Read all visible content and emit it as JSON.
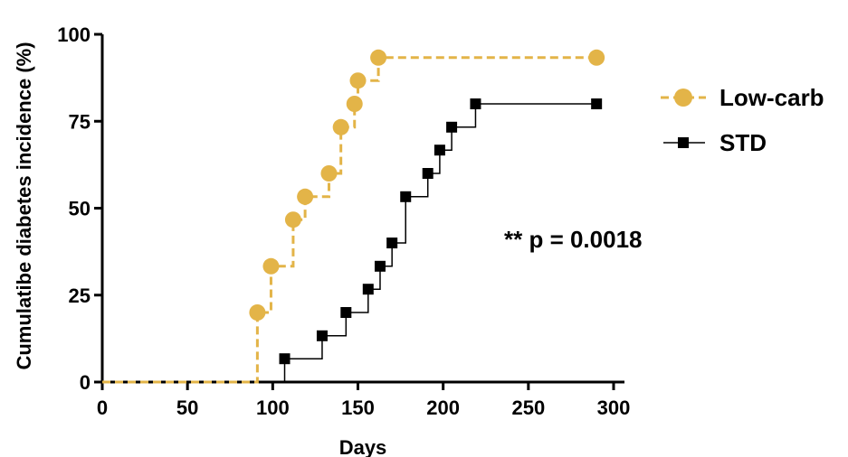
{
  "chart_data": {
    "type": "line",
    "title": "",
    "xlabel": "Days",
    "ylabel": "Cumulatibe diabetes incidence (%)",
    "xlim": [
      0,
      300
    ],
    "ylim": [
      0,
      100
    ],
    "xticks": [
      0,
      50,
      100,
      150,
      200,
      250,
      300
    ],
    "yticks": [
      0,
      25,
      50,
      75,
      100
    ],
    "grid": false,
    "legend_position": "right",
    "annotation": "** p = 0.0018",
    "colors": {
      "low_carb": "#E3B448",
      "std": "#000000"
    },
    "series": [
      {
        "name": "Low-carb",
        "style": "dashed step, circle markers",
        "points": [
          [
            0,
            0
          ],
          [
            91,
            20
          ],
          [
            99,
            33.3
          ],
          [
            112,
            46.7
          ],
          [
            119,
            53.3
          ],
          [
            133,
            60
          ],
          [
            140,
            73.3
          ],
          [
            148,
            80
          ],
          [
            150,
            86.7
          ],
          [
            162,
            93.3
          ],
          [
            290,
            93.3
          ]
        ]
      },
      {
        "name": "STD",
        "style": "solid step, square markers",
        "points": [
          [
            107,
            6.7
          ],
          [
            129,
            13.3
          ],
          [
            143,
            20
          ],
          [
            156,
            26.7
          ],
          [
            163,
            33.3
          ],
          [
            170,
            40
          ],
          [
            178,
            53.3
          ],
          [
            191,
            60
          ],
          [
            198,
            66.7
          ],
          [
            205,
            73.3
          ],
          [
            219,
            80
          ],
          [
            290,
            80
          ]
        ]
      }
    ]
  }
}
